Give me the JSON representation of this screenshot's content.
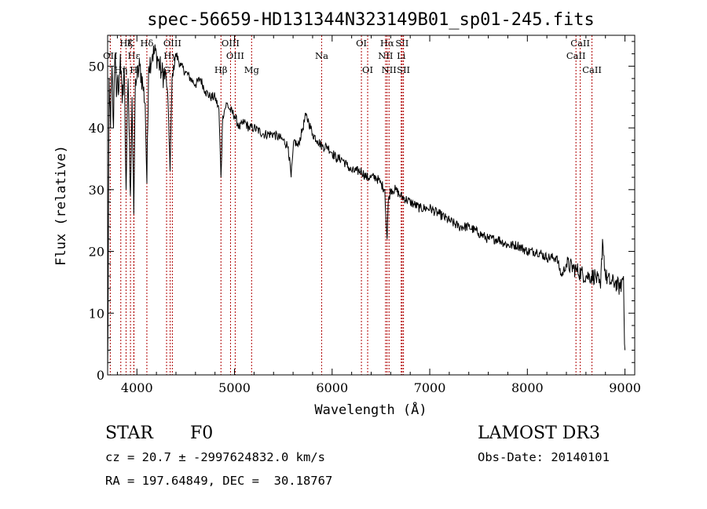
{
  "chart_data": {
    "type": "line",
    "title": "spec-56659-HD131344N323149B01_sp01-245.fits",
    "xlabel": "Wavelength (Å)",
    "ylabel": "Flux (relative)",
    "xlim": [
      3700,
      9100
    ],
    "ylim": [
      0,
      55
    ],
    "xticks": [
      4000,
      5000,
      6000,
      7000,
      8000,
      9000
    ],
    "yticks": [
      0,
      10,
      20,
      30,
      40,
      50
    ],
    "series": [
      {
        "name": "spectrum",
        "anchors": [
          [
            3700,
            0.5
          ],
          [
            3705,
            10
          ],
          [
            3715,
            48
          ],
          [
            3730,
            40
          ],
          [
            3745,
            50
          ],
          [
            3760,
            40
          ],
          [
            3775,
            52
          ],
          [
            3790,
            45
          ],
          [
            3800,
            48
          ],
          [
            3815,
            46
          ],
          [
            3830,
            52
          ],
          [
            3850,
            44
          ],
          [
            3870,
            50
          ],
          [
            3889,
            30
          ],
          [
            3910,
            48
          ],
          [
            3933,
            29
          ],
          [
            3950,
            45
          ],
          [
            3968,
            26
          ],
          [
            3985,
            48
          ],
          [
            4000,
            48
          ],
          [
            4030,
            50
          ],
          [
            4060,
            47
          ],
          [
            4085,
            44
          ],
          [
            4102,
            31
          ],
          [
            4120,
            50
          ],
          [
            4160,
            52
          ],
          [
            4200,
            52
          ],
          [
            4250,
            49
          ],
          [
            4300,
            48
          ],
          [
            4320,
            44
          ],
          [
            4340,
            33
          ],
          [
            4360,
            48
          ],
          [
            4400,
            52
          ],
          [
            4450,
            50
          ],
          [
            4500,
            49
          ],
          [
            4550,
            48
          ],
          [
            4600,
            47
          ],
          [
            4650,
            48
          ],
          [
            4700,
            46
          ],
          [
            4750,
            45
          ],
          [
            4800,
            45
          ],
          [
            4840,
            43
          ],
          [
            4861,
            32
          ],
          [
            4880,
            42
          ],
          [
            4900,
            43
          ],
          [
            4920,
            44
          ],
          [
            4950,
            43
          ],
          [
            5000,
            42
          ],
          [
            5050,
            40
          ],
          [
            5100,
            41
          ],
          [
            5150,
            40
          ],
          [
            5200,
            40
          ],
          [
            5300,
            39
          ],
          [
            5400,
            39
          ],
          [
            5500,
            38
          ],
          [
            5550,
            37
          ],
          [
            5580,
            32
          ],
          [
            5610,
            38
          ],
          [
            5650,
            37
          ],
          [
            5700,
            40
          ],
          [
            5730,
            42
          ],
          [
            5760,
            41
          ],
          [
            5800,
            39
          ],
          [
            5850,
            38
          ],
          [
            5900,
            37
          ],
          [
            5950,
            37
          ],
          [
            6000,
            36
          ],
          [
            6050,
            35
          ],
          [
            6100,
            35
          ],
          [
            6150,
            34
          ],
          [
            6200,
            33
          ],
          [
            6250,
            33
          ],
          [
            6300,
            33
          ],
          [
            6350,
            32
          ],
          [
            6400,
            32
          ],
          [
            6450,
            32
          ],
          [
            6500,
            31
          ],
          [
            6540,
            30
          ],
          [
            6555,
            24
          ],
          [
            6563,
            22
          ],
          [
            6575,
            28
          ],
          [
            6600,
            30
          ],
          [
            6650,
            30
          ],
          [
            6700,
            29
          ],
          [
            6800,
            28
          ],
          [
            6900,
            27
          ],
          [
            7000,
            27
          ],
          [
            7100,
            26
          ],
          [
            7200,
            25
          ],
          [
            7300,
            24
          ],
          [
            7400,
            24
          ],
          [
            7500,
            23
          ],
          [
            7600,
            22
          ],
          [
            7700,
            22
          ],
          [
            7800,
            21
          ],
          [
            7900,
            21
          ],
          [
            8000,
            20
          ],
          [
            8100,
            20
          ],
          [
            8200,
            19
          ],
          [
            8300,
            19
          ],
          [
            8350,
            16
          ],
          [
            8400,
            18
          ],
          [
            8500,
            17
          ],
          [
            8600,
            16
          ],
          [
            8700,
            16
          ],
          [
            8750,
            14
          ],
          [
            8770,
            22
          ],
          [
            8800,
            16
          ],
          [
            8850,
            15
          ],
          [
            8900,
            15
          ],
          [
            8950,
            14
          ],
          [
            8985,
            16
          ],
          [
            8995,
            5
          ],
          [
            9000,
            4
          ]
        ]
      }
    ],
    "annotations": [
      {
        "label": "Hζ",
        "x": 3889,
        "row": 0
      },
      {
        "label": "OII",
        "x": 3727,
        "row": 1
      },
      {
        "label": "Hη",
        "x": 3835,
        "row": 2
      },
      {
        "label": "Hε",
        "x": 3970,
        "row": 1
      },
      {
        "label": "K",
        "x": 3934,
        "row": 0
      },
      {
        "label": "H",
        "x": 3968,
        "row": 2
      },
      {
        "label": "Hδ",
        "x": 4102,
        "row": 0
      },
      {
        "label": "G",
        "x": 4304,
        "row": 2
      },
      {
        "label": "OIII",
        "x": 4363,
        "row": 0
      },
      {
        "label": "Hγ",
        "x": 4341,
        "row": 1
      },
      {
        "label": "Hβ",
        "x": 4861,
        "row": 2
      },
      {
        "label": "OIII",
        "x": 4959,
        "row": 0
      },
      {
        "label": "OIII",
        "x": 5007,
        "row": 1
      },
      {
        "label": "Mg",
        "x": 5175,
        "row": 2
      },
      {
        "label": "Na",
        "x": 5893,
        "row": 1
      },
      {
        "label": "OI",
        "x": 6300,
        "row": 0
      },
      {
        "label": "OI",
        "x": 6364,
        "row": 2
      },
      {
        "label": "Hα",
        "x": 6563,
        "row": 0
      },
      {
        "label": "NII",
        "x": 6548,
        "row": 1
      },
      {
        "label": "NII",
        "x": 6583,
        "row": 2
      },
      {
        "label": "SII",
        "x": 6717,
        "row": 0
      },
      {
        "label": "Li",
        "x": 6708,
        "row": 1
      },
      {
        "label": "SII",
        "x": 6731,
        "row": 2
      },
      {
        "label": "CaII",
        "x": 8542,
        "row": 0
      },
      {
        "label": "CaII",
        "x": 8498,
        "row": 1
      },
      {
        "label": "CaII",
        "x": 8662,
        "row": 2
      }
    ]
  },
  "info": {
    "class_label": "STAR",
    "subclass": "F0",
    "survey": "LAMOST DR3",
    "cz_text": "cz = 20.7 ± -2997624832.0 km/s",
    "obs_date": "Obs-Date: 20140101",
    "radec_text": "RA = 197.64849, DEC =  30.18767"
  }
}
